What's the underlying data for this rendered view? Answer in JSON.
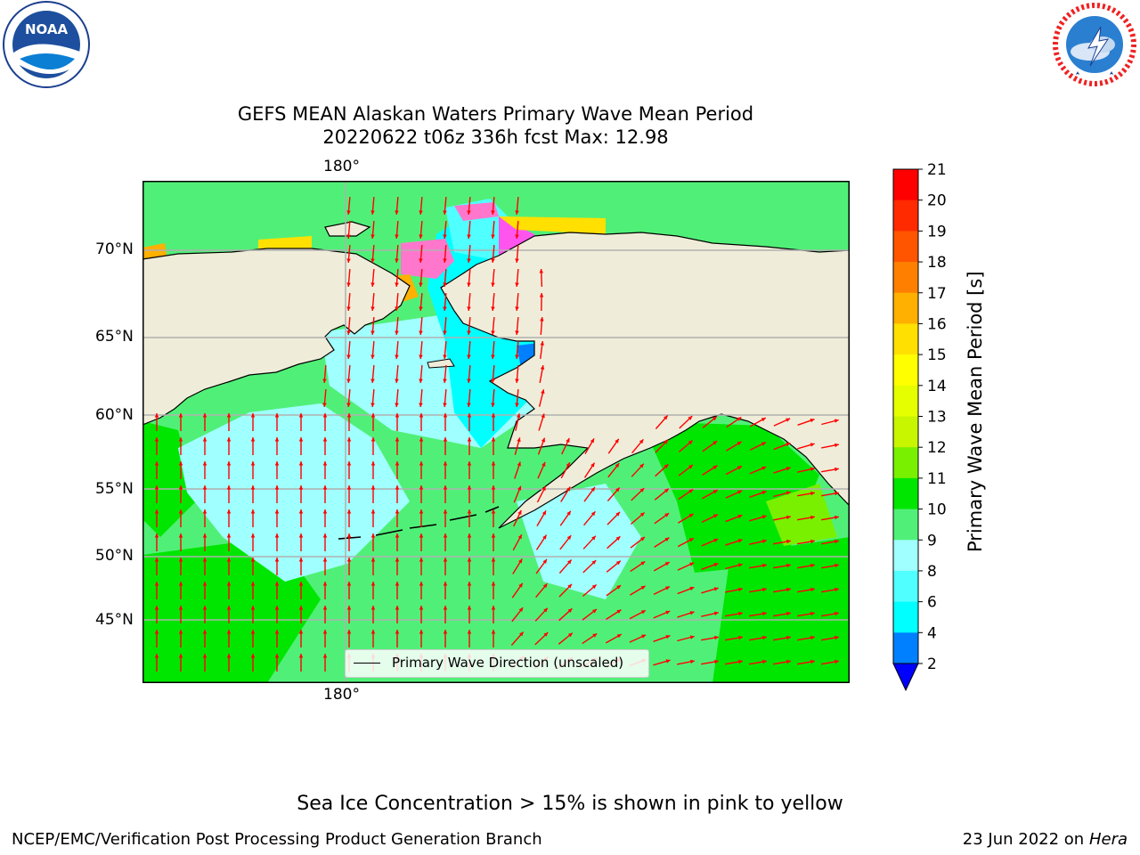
{
  "logos": {
    "noaa": {
      "name": "NOAA",
      "text": "NOAA",
      "ring_text": "NATIONAL OCEANIC AND ATMOSPHERIC ADMINISTRATION · U.S. DEPARTMENT OF COMMERCE"
    },
    "nws": {
      "name": "National Weather Service",
      "ring_text": "NATIONAL WEATHER SERVICE"
    }
  },
  "title": {
    "line1": "GEFS MEAN Alaskan Waters Primary Wave Mean Period",
    "line2": "20220622 t06z 336h fcst   Max: 12.98"
  },
  "map": {
    "lon_label_top": "180°",
    "lon_label_bottom": "180°",
    "lat_labels": [
      "70°N",
      "65°N",
      "60°N",
      "55°N",
      "50°N",
      "45°N"
    ],
    "legend_label": "Primary Wave Direction (unscaled)",
    "colors": {
      "land": "#efedd9",
      "coast": "#000000",
      "arrow": "#ff0000",
      "grid": "#b0b0b0"
    }
  },
  "colorbar": {
    "label": "Primary Wave Mean Period [s]",
    "ticks": [
      "21",
      "20",
      "19",
      "18",
      "17",
      "16",
      "15",
      "14",
      "13",
      "12",
      "11",
      "10",
      "9",
      "8",
      "6",
      "4",
      "2"
    ],
    "colors": [
      "#ff0000",
      "#ff2a00",
      "#ff5500",
      "#ff8000",
      "#ffb000",
      "#ffe000",
      "#ffff00",
      "#e6ff00",
      "#c8f500",
      "#78f000",
      "#00e600",
      "#50f078",
      "#a0ffff",
      "#50ffff",
      "#00ffff",
      "#0080ff",
      "#0000ff"
    ]
  },
  "note": "Sea Ice Concentration > 15% is shown in pink to yellow",
  "footer": {
    "left": "NCEP/EMC/Verification Post Processing Product Generation Branch",
    "right_date": "23 Jun 2022 on",
    "right_host": "Hera"
  }
}
